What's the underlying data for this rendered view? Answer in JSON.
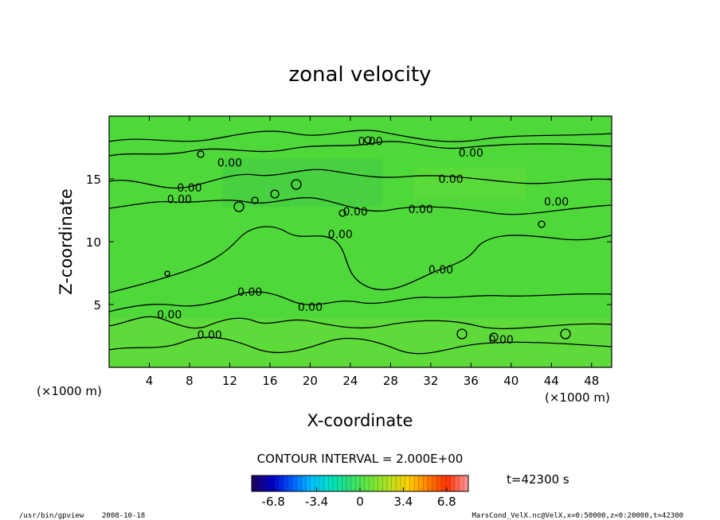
{
  "chart_data": {
    "type": "heatmap",
    "title": "zonal velocity",
    "xlabel": "X-coordinate",
    "ylabel": "Z-coordinate",
    "x_unit": "(×1000 m)",
    "y_unit": "(×1000 m)",
    "xlim": [
      0,
      50
    ],
    "ylim": [
      0,
      20
    ],
    "x_ticks": [
      4,
      8,
      12,
      16,
      20,
      24,
      28,
      32,
      36,
      40,
      44,
      48
    ],
    "y_ticks": [
      5,
      10,
      15
    ],
    "contour_interval_text": "CONTOUR INTERVAL = 2.000E+00",
    "contour_labels": [
      "0.00",
      "0.00",
      "0.00",
      "0.00",
      "0.00",
      "0.00",
      "0.00",
      "0.00",
      "0.00",
      "0.00",
      "0.00",
      "0.00",
      "0.00",
      "0.00",
      "0.00",
      "0.00"
    ],
    "time_text": "t=42300 s",
    "colorbar": {
      "min": -8.5,
      "max": 8.5,
      "tick_labels": [
        "-6.8",
        "-3.4",
        "0",
        "3.4",
        "6.8"
      ],
      "tick_values": [
        -6.8,
        -3.4,
        0,
        3.4,
        6.8
      ],
      "colors": [
        "#1a0066",
        "#0000cc",
        "#0060ff",
        "#00c0ff",
        "#00e0c0",
        "#30e070",
        "#6ce43a",
        "#b4e020",
        "#ffd000",
        "#ff8000",
        "#ff3000",
        "#ff9090"
      ]
    },
    "field_color": "#4fd83a"
  },
  "footer": {
    "program": "/usr/bin/gpview",
    "date": "2008-10-18",
    "source": "MarsCond_VelX.nc@VelX,x=0:50000,z=0:20000,t=42300"
  }
}
